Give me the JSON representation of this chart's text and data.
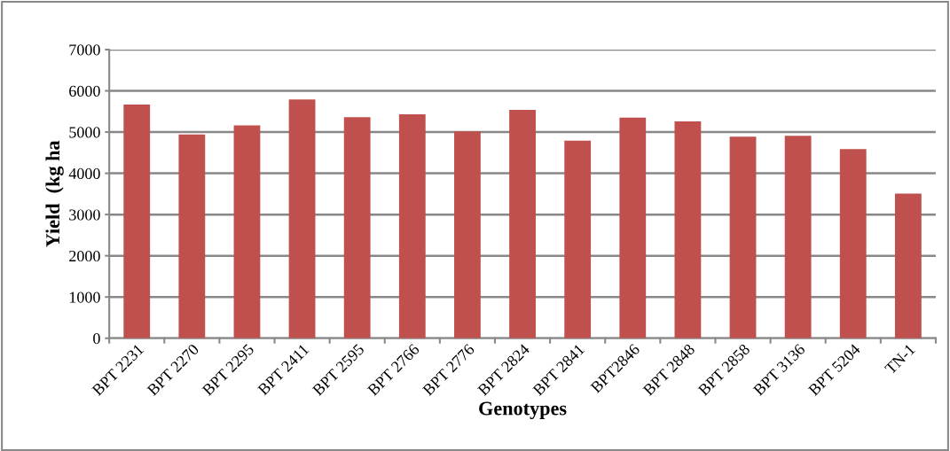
{
  "chart_data": {
    "type": "bar",
    "xlabel": "Genotypes",
    "ylabel": "Yield  (kg ha",
    "categories": [
      "BPT 2231",
      "BPT 2270",
      "BPT 2295",
      "BPT 2411",
      "BPT 2595",
      "BPT 2766",
      "BPT 2776",
      "BPT 2824",
      "BPT 2841",
      "BPT2846",
      "BPT 2848",
      "BPT 2858",
      "BPT 3136",
      "BPT 5204",
      "TN-1"
    ],
    "values": [
      5670,
      4940,
      5160,
      5790,
      5360,
      5430,
      5020,
      5540,
      4790,
      5350,
      5260,
      4890,
      4910,
      4590,
      3510
    ],
    "color": "#c0504d",
    "ylim": [
      0,
      7000
    ],
    "yticks": [
      0,
      1000,
      2000,
      3000,
      4000,
      5000,
      6000,
      7000
    ],
    "grid": "y"
  }
}
